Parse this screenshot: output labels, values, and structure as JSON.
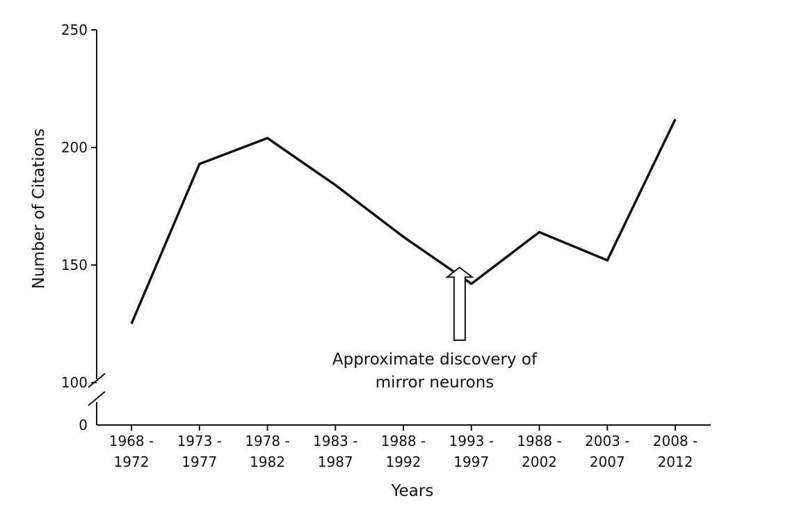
{
  "chart_data": {
    "type": "line",
    "xlabel": "Years",
    "ylabel": "Number of Citations",
    "categories": [
      [
        "1968 -",
        "1972"
      ],
      [
        "1973 -",
        "1977"
      ],
      [
        "1978 -",
        "1982"
      ],
      [
        "1983 -",
        "1987"
      ],
      [
        "1988 -",
        "1992"
      ],
      [
        "1993 -",
        "1997"
      ],
      [
        "1988 -",
        "2002"
      ],
      [
        "2003 -",
        "2007"
      ],
      [
        "2008 -",
        "2012"
      ]
    ],
    "series": [
      {
        "values": [
          125,
          193,
          204,
          184,
          162,
          142,
          164,
          152,
          212
        ]
      }
    ],
    "yticks": [
      0,
      100,
      150,
      200,
      250
    ],
    "ylim": [
      0,
      250
    ],
    "y_axis_break": [
      0,
      100
    ],
    "grid": false,
    "annotation": {
      "text_line1": "Approximate discovery of",
      "text_line2": "mirror neurons",
      "arrow_x_between": [
        4,
        5
      ],
      "arrow_tip_value": 149,
      "arrow_base_value": 118
    }
  }
}
